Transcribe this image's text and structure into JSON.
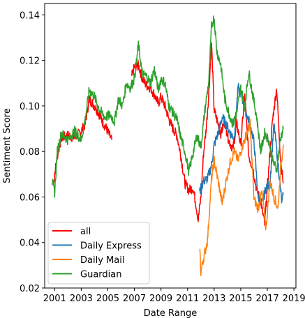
{
  "chart_data": {
    "type": "line",
    "title": "",
    "xlabel": "Date Range",
    "ylabel": "Sentiment Score",
    "xlim": [
      2000.25,
      2019.15
    ],
    "ylim": [
      0.02,
      0.145
    ],
    "x_ticks": [
      2001,
      2003,
      2005,
      2007,
      2009,
      2011,
      2013,
      2015,
      2017,
      2019
    ],
    "x_tick_labels": [
      "2001",
      "2003",
      "2005",
      "2007",
      "2009",
      "2011",
      "2013",
      "2015",
      "2017",
      "2019"
    ],
    "y_ticks": [
      0.02,
      0.04,
      0.06,
      0.08,
      0.1,
      0.12,
      0.14
    ],
    "y_tick_labels": [
      "0.02",
      "0.04",
      "0.06",
      "0.08",
      "0.10",
      "0.12",
      "0.14"
    ],
    "grid": false,
    "legend_position": "lower-left",
    "series": [
      {
        "name": "all",
        "color": "#ff0000",
        "points": [
          [
            2000.9,
            0.066
          ],
          [
            2001.2,
            0.078
          ],
          [
            2001.5,
            0.086
          ],
          [
            2002.0,
            0.087
          ],
          [
            2002.5,
            0.086
          ],
          [
            2003.0,
            0.089
          ],
          [
            2003.3,
            0.092
          ],
          [
            2003.6,
            0.103
          ],
          [
            2004.0,
            0.1
          ],
          [
            2004.3,
            0.097
          ],
          [
            2004.6,
            0.093
          ],
          [
            2004.9,
            0.09
          ],
          [
            2005.2,
            0.086
          ],
          [
            2005.3,
            0.085
          ]
        ]
      },
      {
        "name": "all",
        "color": "#ff0000",
        "points": [
          [
            2006.8,
            0.113
          ],
          [
            2007.0,
            0.117
          ],
          [
            2007.3,
            0.118
          ],
          [
            2007.6,
            0.112
          ],
          [
            2007.9,
            0.109
          ],
          [
            2008.2,
            0.108
          ],
          [
            2008.5,
            0.105
          ],
          [
            2008.8,
            0.101
          ],
          [
            2009.0,
            0.104
          ],
          [
            2009.3,
            0.1
          ],
          [
            2009.6,
            0.094
          ],
          [
            2009.9,
            0.09
          ],
          [
            2010.2,
            0.087
          ],
          [
            2010.5,
            0.078
          ],
          [
            2010.8,
            0.066
          ],
          [
            2011.1,
            0.063
          ],
          [
            2011.4,
            0.064
          ],
          [
            2011.6,
            0.058
          ],
          [
            2011.8,
            0.05
          ],
          [
            2012.0,
            0.06
          ],
          [
            2012.2,
            0.079
          ],
          [
            2012.4,
            0.09
          ],
          [
            2012.6,
            0.106
          ],
          [
            2012.8,
            0.128
          ],
          [
            2013.0,
            0.098
          ],
          [
            2013.2,
            0.094
          ],
          [
            2013.5,
            0.088
          ],
          [
            2013.8,
            0.093
          ],
          [
            2014.1,
            0.085
          ],
          [
            2014.4,
            0.081
          ],
          [
            2014.7,
            0.092
          ],
          [
            2015.0,
            0.083
          ],
          [
            2015.3,
            0.105
          ],
          [
            2015.6,
            0.078
          ],
          [
            2015.9,
            0.073
          ],
          [
            2016.2,
            0.063
          ],
          [
            2016.5,
            0.058
          ],
          [
            2016.8,
            0.048
          ],
          [
            2017.1,
            0.072
          ],
          [
            2017.4,
            0.094
          ],
          [
            2017.7,
            0.108
          ],
          [
            2018.0,
            0.076
          ],
          [
            2018.2,
            0.066
          ]
        ]
      },
      {
        "name": "Daily Express",
        "color": "#1f77b4",
        "points": [
          [
            2011.9,
            0.062
          ],
          [
            2012.2,
            0.067
          ],
          [
            2012.5,
            0.068
          ],
          [
            2012.8,
            0.074
          ],
          [
            2013.0,
            0.083
          ],
          [
            2013.3,
            0.088
          ],
          [
            2013.6,
            0.095
          ],
          [
            2013.9,
            0.092
          ],
          [
            2014.2,
            0.088
          ],
          [
            2014.5,
            0.086
          ],
          [
            2014.8,
            0.108
          ],
          [
            2015.1,
            0.104
          ],
          [
            2015.4,
            0.097
          ],
          [
            2015.7,
            0.092
          ],
          [
            2016.0,
            0.084
          ],
          [
            2016.3,
            0.06
          ],
          [
            2016.6,
            0.057
          ],
          [
            2016.9,
            0.064
          ],
          [
            2017.2,
            0.066
          ],
          [
            2017.5,
            0.092
          ],
          [
            2017.8,
            0.075
          ],
          [
            2018.1,
            0.057
          ],
          [
            2018.2,
            0.061
          ]
        ]
      },
      {
        "name": "Daily Mail",
        "color": "#ff7f0e",
        "points": [
          [
            2011.9,
            0.039
          ],
          [
            2012.0,
            0.027
          ],
          [
            2012.2,
            0.033
          ],
          [
            2012.5,
            0.041
          ],
          [
            2012.8,
            0.068
          ],
          [
            2013.0,
            0.076
          ],
          [
            2013.3,
            0.067
          ],
          [
            2013.6,
            0.057
          ],
          [
            2013.9,
            0.067
          ],
          [
            2014.2,
            0.075
          ],
          [
            2014.5,
            0.08
          ],
          [
            2014.8,
            0.076
          ],
          [
            2015.1,
            0.082
          ],
          [
            2015.4,
            0.087
          ],
          [
            2015.7,
            0.092
          ],
          [
            2016.0,
            0.059
          ],
          [
            2016.3,
            0.055
          ],
          [
            2016.6,
            0.062
          ],
          [
            2016.9,
            0.046
          ],
          [
            2017.2,
            0.067
          ],
          [
            2017.5,
            0.06
          ],
          [
            2017.8,
            0.055
          ],
          [
            2018.0,
            0.073
          ],
          [
            2018.2,
            0.083
          ]
        ]
      },
      {
        "name": "Guardian",
        "color": "#2ca02c",
        "points": [
          [
            2000.8,
            0.067
          ],
          [
            2001.0,
            0.062
          ],
          [
            2001.2,
            0.08
          ],
          [
            2001.5,
            0.088
          ],
          [
            2002.0,
            0.085
          ],
          [
            2002.5,
            0.089
          ],
          [
            2003.0,
            0.085
          ],
          [
            2003.3,
            0.094
          ],
          [
            2003.6,
            0.107
          ],
          [
            2004.0,
            0.104
          ],
          [
            2004.4,
            0.098
          ],
          [
            2004.8,
            0.095
          ],
          [
            2005.2,
            0.096
          ],
          [
            2005.5,
            0.093
          ],
          [
            2005.8,
            0.103
          ],
          [
            2006.1,
            0.1
          ],
          [
            2006.4,
            0.11
          ],
          [
            2006.7,
            0.108
          ],
          [
            2007.0,
            0.112
          ],
          [
            2007.3,
            0.127
          ],
          [
            2007.6,
            0.114
          ],
          [
            2007.9,
            0.113
          ],
          [
            2008.2,
            0.11
          ],
          [
            2008.5,
            0.116
          ],
          [
            2008.8,
            0.107
          ],
          [
            2009.0,
            0.112
          ],
          [
            2009.3,
            0.11
          ],
          [
            2009.6,
            0.1
          ],
          [
            2009.9,
            0.097
          ],
          [
            2010.2,
            0.094
          ],
          [
            2010.5,
            0.086
          ],
          [
            2010.8,
            0.08
          ],
          [
            2011.1,
            0.071
          ],
          [
            2011.4,
            0.079
          ],
          [
            2011.7,
            0.087
          ],
          [
            2012.0,
            0.082
          ],
          [
            2012.3,
            0.098
          ],
          [
            2012.6,
            0.111
          ],
          [
            2012.8,
            0.135
          ],
          [
            2013.0,
            0.139
          ],
          [
            2013.2,
            0.124
          ],
          [
            2013.5,
            0.118
          ],
          [
            2013.8,
            0.103
          ],
          [
            2014.1,
            0.097
          ],
          [
            2014.4,
            0.092
          ],
          [
            2014.7,
            0.097
          ],
          [
            2015.0,
            0.108
          ],
          [
            2015.3,
            0.1
          ],
          [
            2015.6,
            0.115
          ],
          [
            2015.9,
            0.105
          ],
          [
            2016.2,
            0.095
          ],
          [
            2016.5,
            0.08
          ],
          [
            2016.8,
            0.088
          ],
          [
            2017.1,
            0.085
          ],
          [
            2017.4,
            0.076
          ],
          [
            2017.7,
            0.072
          ],
          [
            2018.0,
            0.086
          ],
          [
            2018.2,
            0.09
          ]
        ]
      }
    ],
    "legend": [
      {
        "label": "all",
        "color": "#ff0000"
      },
      {
        "label": "Daily Express",
        "color": "#1f77b4"
      },
      {
        "label": "Daily Mail",
        "color": "#ff7f0e"
      },
      {
        "label": "Guardian",
        "color": "#2ca02c"
      }
    ]
  }
}
